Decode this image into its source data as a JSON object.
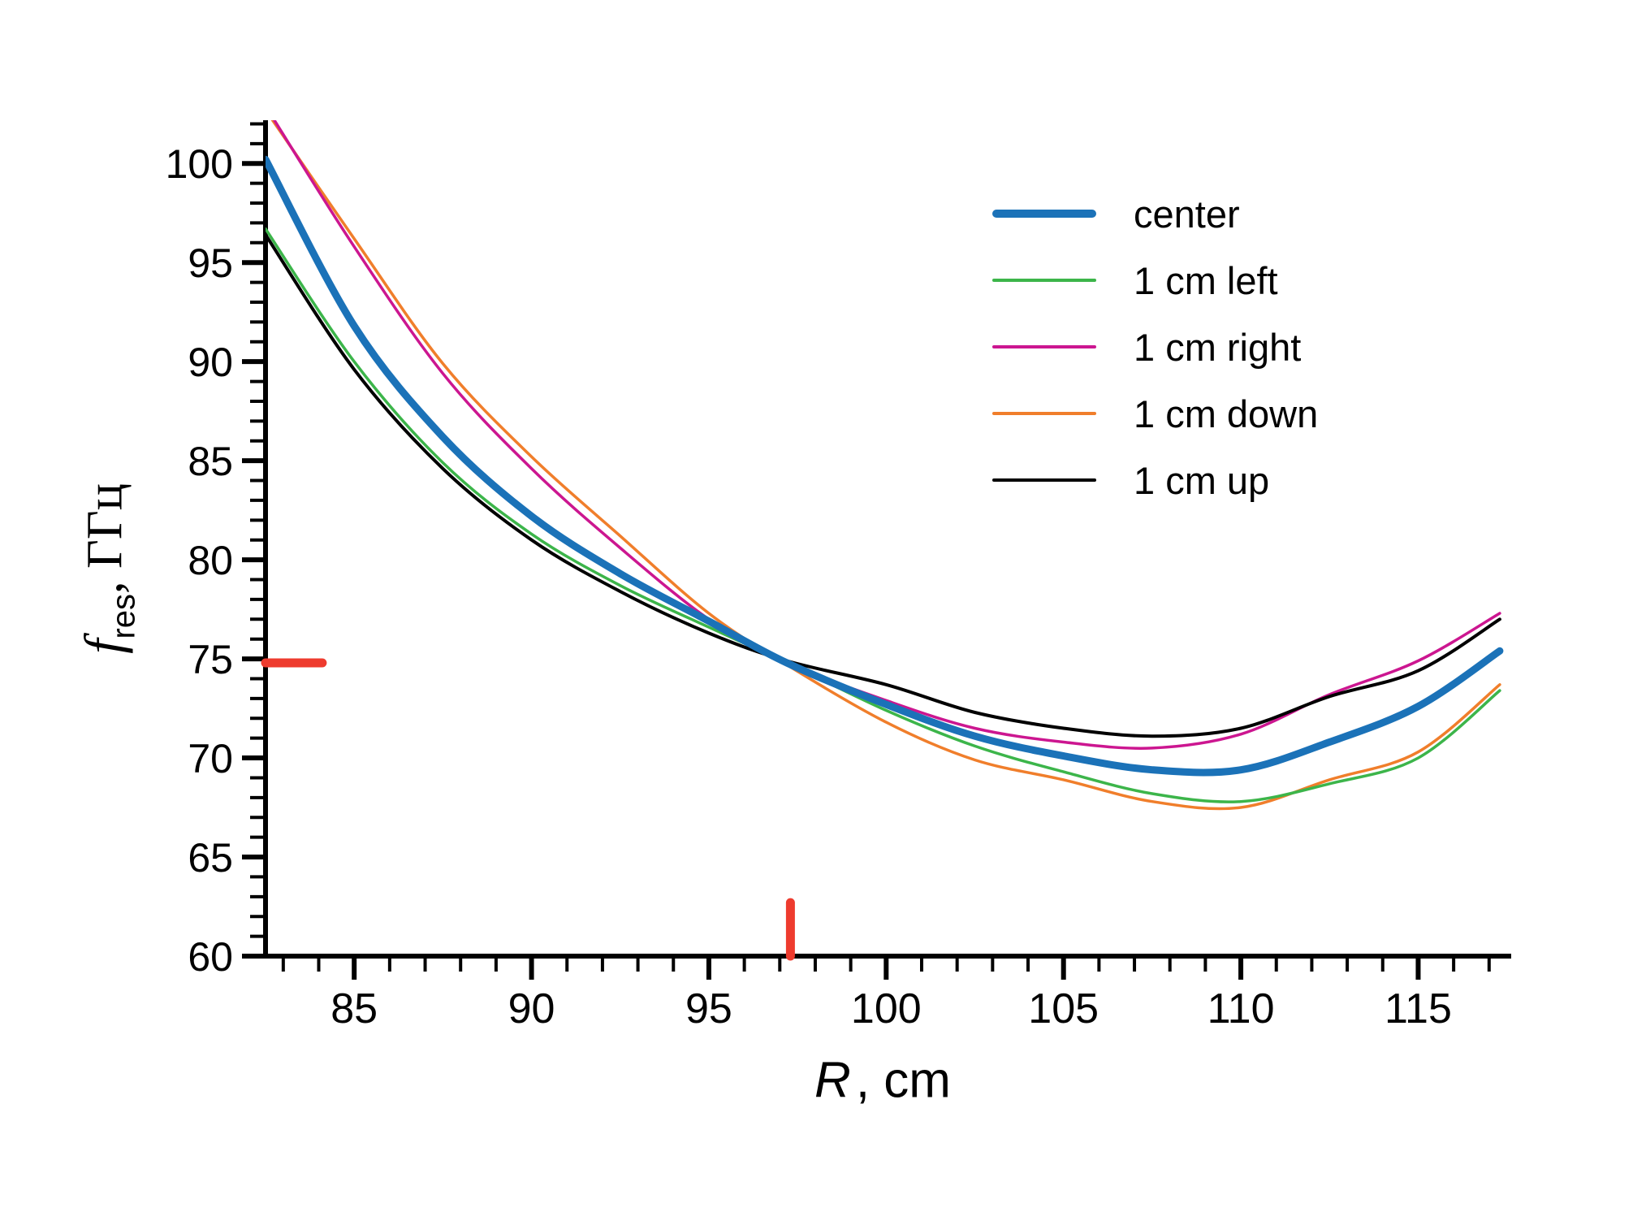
{
  "figure": {
    "background": "#ffffff"
  },
  "chart_data": {
    "type": "line",
    "title": "",
    "grid": false,
    "legend_position": "upper-right",
    "x_axis": {
      "label_symbol": "R",
      "label_suffix": ", cm",
      "min": 82.5,
      "max": 117.6,
      "major_ticks": [
        85,
        90,
        95,
        100,
        105,
        110,
        115
      ],
      "minor_tick_step": 1
    },
    "y_axis": {
      "label_symbol": "f",
      "label_subscript": "res",
      "label_suffix": ", ГГц",
      "min": 60,
      "max": 102.1,
      "major_ticks": [
        60,
        65,
        70,
        75,
        80,
        85,
        90,
        95,
        100
      ],
      "minor_tick_step": 1
    },
    "x": [
      82.5,
      85,
      87.5,
      90,
      92.5,
      95,
      97.2,
      100,
      102.5,
      105,
      107.5,
      110,
      112.5,
      115,
      117.3
    ],
    "series": [
      {
        "name": "center",
        "color": "#1b72b8",
        "width": 9,
        "values": [
          100.2,
          91.8,
          86.2,
          82.2,
          79.3,
          76.9,
          74.8,
          72.7,
          71.1,
          70.1,
          69.4,
          69.4,
          70.8,
          72.6,
          75.4
        ]
      },
      {
        "name": "1 cm left",
        "color": "#3cb54a",
        "width": 3.5,
        "values": [
          96.7,
          90.0,
          84.9,
          81.3,
          78.7,
          76.6,
          74.8,
          72.4,
          70.6,
          69.3,
          68.2,
          67.8,
          68.7,
          70.0,
          73.4
        ]
      },
      {
        "name": "1 cm right",
        "color": "#cc1690",
        "width": 3.5,
        "values": [
          102.9,
          95.8,
          89.4,
          84.6,
          80.6,
          77.0,
          74.8,
          72.9,
          71.5,
          70.8,
          70.5,
          71.2,
          73.2,
          74.9,
          77.3
        ]
      },
      {
        "name": "1 cm down",
        "color": "#f07e2b",
        "width": 3.5,
        "values": [
          102.7,
          96.2,
          89.9,
          85.2,
          81.2,
          77.3,
          74.7,
          71.8,
          69.9,
          68.9,
          67.8,
          67.5,
          68.9,
          70.3,
          73.7
        ]
      },
      {
        "name": "1 cm up",
        "color": "#000000",
        "width": 4,
        "values": [
          96.4,
          89.6,
          84.6,
          81.0,
          78.4,
          76.3,
          74.9,
          73.7,
          72.3,
          71.5,
          71.1,
          71.5,
          73.1,
          74.4,
          77.0
        ]
      }
    ],
    "annotations": {
      "marker_color": "#ee3b2e",
      "h_marker": {
        "f": 74.8,
        "r_start": 82.5,
        "r_end": 84.1
      },
      "v_marker": {
        "r": 97.3,
        "f_start": 60.0,
        "f_end": 62.7
      },
      "curves_crossing_point": {
        "R": 97.2,
        "f": 74.8
      }
    }
  }
}
